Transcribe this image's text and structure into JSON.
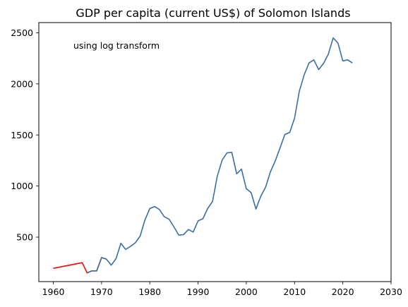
{
  "chart_data": {
    "type": "line",
    "title": "GDP per capita (current US$) of Solomon Islands",
    "annotation": "using log transform",
    "xlabel": "",
    "ylabel": "",
    "xlim": [
      1957,
      2030
    ],
    "ylim": [
      65,
      2600
    ],
    "xticks": [
      1960,
      1970,
      1980,
      1990,
      2000,
      2010,
      2020,
      2030
    ],
    "yticks": [
      500,
      1000,
      1500,
      2000,
      2500
    ],
    "grid": false,
    "series": [
      {
        "color": "#ff0000",
        "x": [
          1960,
          1966,
          1967,
          1968,
          1969,
          1970,
          1971
        ],
        "y": [
          195,
          250,
          150,
          170,
          170,
          300,
          285
        ]
      },
      {
        "color": "#3a6ea5",
        "x": [
          1967,
          1968,
          1969,
          1970,
          1971,
          1972,
          1973,
          1974,
          1975,
          1976,
          1977,
          1978,
          1979,
          1980,
          1981,
          1982,
          1983,
          1984,
          1985,
          1986,
          1987,
          1988,
          1989,
          1990,
          1991,
          1992,
          1993,
          1994,
          1995,
          1996,
          1997,
          1998,
          1999,
          2000,
          2001,
          2002,
          2003,
          2004,
          2005,
          2006,
          2007,
          2008,
          2009,
          2010,
          2011,
          2012,
          2013,
          2014,
          2015,
          2016,
          2017,
          2018,
          2019,
          2020,
          2021,
          2022
        ],
        "y": [
          150,
          170,
          170,
          300,
          285,
          225,
          290,
          440,
          380,
          410,
          445,
          510,
          670,
          780,
          800,
          770,
          700,
          675,
          600,
          520,
          525,
          575,
          550,
          660,
          680,
          780,
          850,
          1100,
          1255,
          1325,
          1330,
          1120,
          1165,
          975,
          935,
          775,
          900,
          990,
          1140,
          1245,
          1375,
          1505,
          1525,
          1665,
          1930,
          2090,
          2205,
          2235,
          2140,
          2200,
          2290,
          2450,
          2400,
          2225,
          2235,
          2205
        ]
      }
    ]
  }
}
